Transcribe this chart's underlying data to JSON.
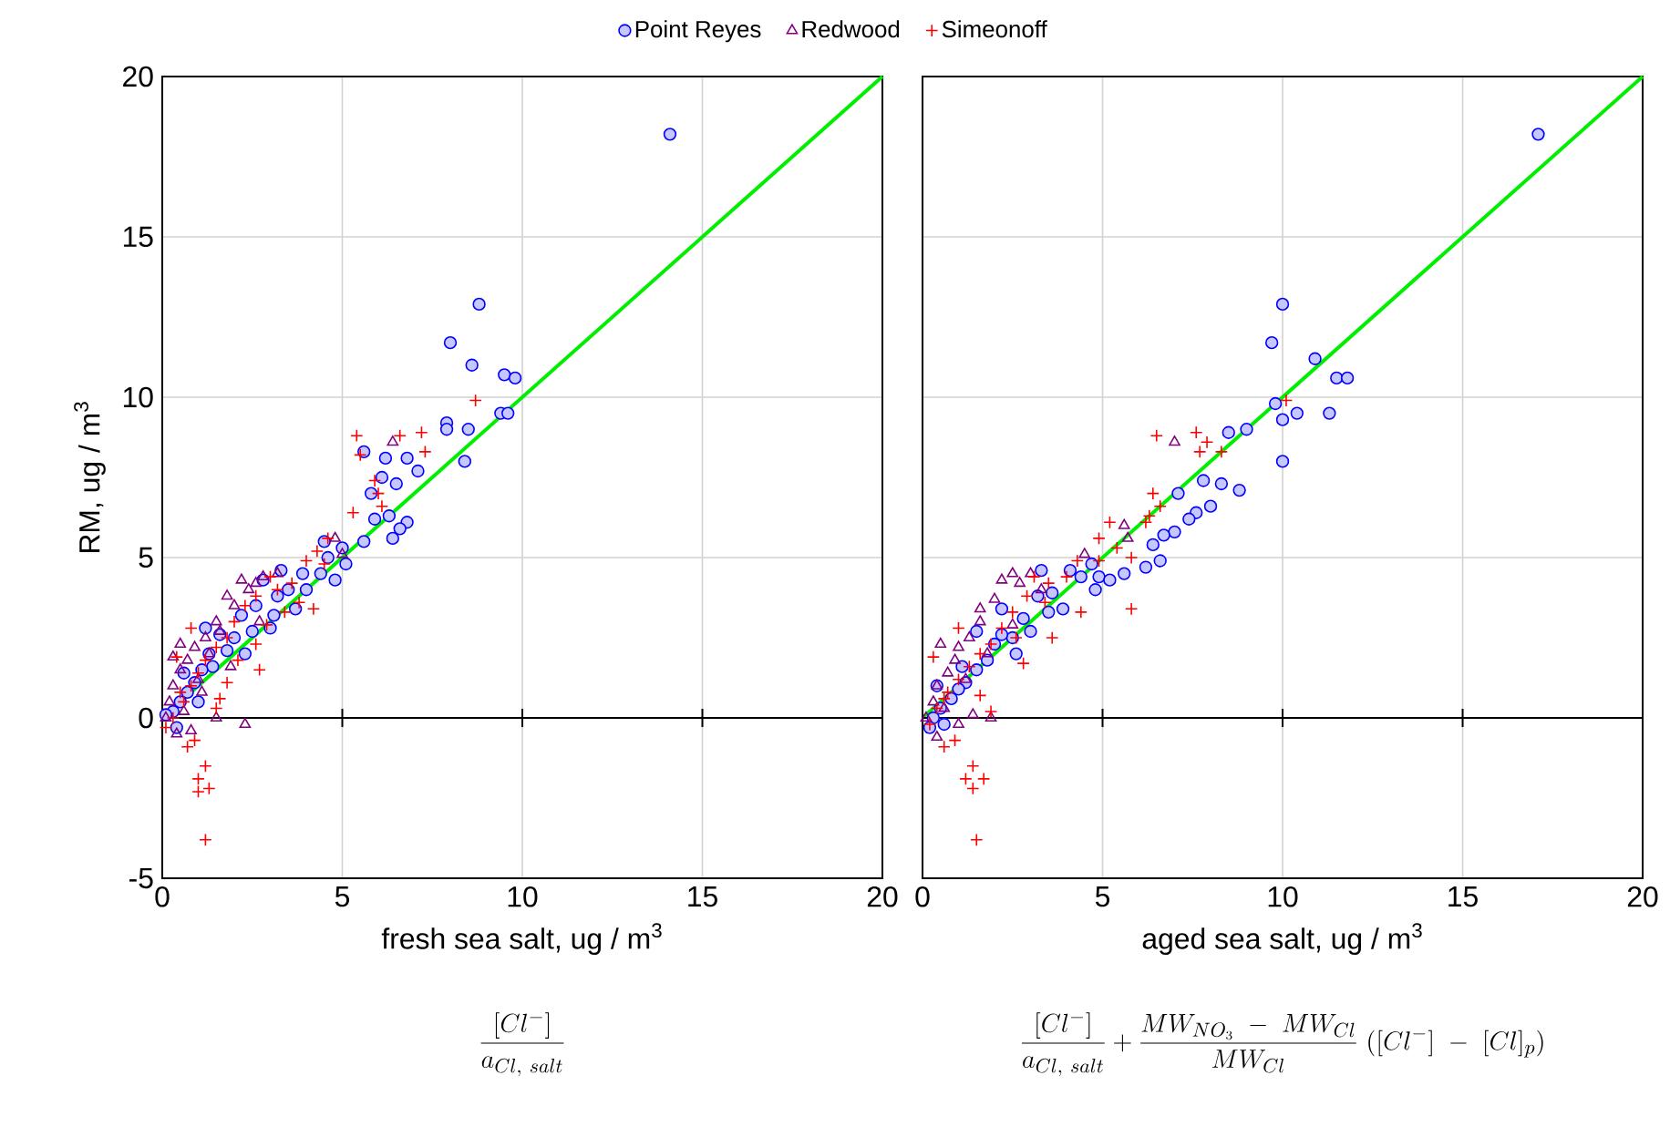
{
  "chart_data": [
    {
      "type": "scatter",
      "xlabel": "fresh sea salt, ug / m$^{3}$",
      "ylabel": "RM, ug / m$^{3}$",
      "xlim": [
        0,
        20
      ],
      "ylim": [
        -5,
        20
      ],
      "xticks": [
        0,
        5,
        10,
        15,
        20
      ],
      "yticks": [
        -5,
        0,
        5,
        10,
        15,
        20
      ],
      "grid": true,
      "legend": "top",
      "annotations": [
        "\\frac{[Cl^{-}]}{a_{Cl,\\ salt}}"
      ],
      "ref_lines": [
        {
          "axis": "y",
          "value": 0,
          "color": "#000000"
        }
      ],
      "series": [
        {
          "name": "Point Reyes",
          "color": "#0000ff",
          "marker": "circle",
          "x": [
            14.1,
            8.0,
            8.8,
            8.6,
            9.5,
            9.8,
            7.9,
            7.9,
            9.4,
            9.6,
            8.5,
            8.4,
            5.6,
            6.2,
            6.8,
            6.1,
            5.8,
            6.5,
            7.1,
            5.9,
            6.3,
            6.8,
            6.6,
            6.4,
            5.6,
            5.0,
            4.5,
            4.6,
            5.1,
            4.4,
            4.8,
            3.9,
            4.0,
            3.5,
            3.2,
            3.7,
            3.1,
            3.0,
            2.6,
            2.2,
            2.5,
            2.0,
            1.8,
            1.6,
            1.3,
            1.4,
            1.1,
            0.9,
            0.7,
            0.5,
            0.3,
            0.4,
            0.1,
            0.6,
            1.0,
            2.8,
            3.3,
            1.2,
            2.3
          ],
          "values": [
            18.2,
            11.7,
            12.9,
            11.0,
            10.7,
            10.6,
            9.2,
            9.0,
            9.5,
            9.5,
            9.0,
            8.0,
            8.3,
            8.1,
            8.1,
            7.5,
            7.0,
            7.3,
            7.7,
            6.2,
            6.3,
            6.1,
            5.9,
            5.6,
            5.5,
            5.3,
            5.5,
            5.0,
            4.8,
            4.5,
            4.3,
            4.5,
            4.0,
            4.0,
            3.8,
            3.4,
            3.2,
            2.8,
            3.5,
            3.2,
            2.7,
            2.5,
            2.1,
            2.6,
            2.0,
            1.6,
            1.5,
            1.1,
            0.8,
            0.5,
            0.2,
            -0.3,
            0.1,
            1.4,
            0.5,
            4.3,
            4.6,
            2.8,
            2.0
          ]
        },
        {
          "name": "Redwood",
          "color": "#800080",
          "marker": "triangle",
          "x": [
            6.4,
            4.8,
            5.0,
            2.0,
            2.4,
            2.6,
            2.2,
            1.8,
            1.5,
            1.2,
            0.9,
            0.7,
            0.5,
            0.3,
            0.2,
            0.1,
            0.4,
            0.6,
            1.0,
            1.5,
            2.3,
            1.3,
            1.6,
            2.8,
            3.2,
            2.7,
            0.8,
            1.1,
            0.3,
            0.5,
            1.9
          ],
          "values": [
            8.6,
            5.6,
            5.1,
            3.5,
            4.0,
            4.2,
            4.3,
            3.8,
            3.0,
            2.5,
            2.2,
            1.8,
            1.5,
            1.0,
            0.5,
            0.0,
            -0.5,
            0.2,
            1.2,
            0.0,
            -0.2,
            2.0,
            2.7,
            4.4,
            4.5,
            3.0,
            -0.4,
            0.8,
            1.9,
            2.3,
            1.6
          ]
        },
        {
          "name": "Simeonoff",
          "color": "#ff0000",
          "marker": "cross",
          "x": [
            8.7,
            6.6,
            7.2,
            7.3,
            5.4,
            5.5,
            5.9,
            6.0,
            6.1,
            5.3,
            4.6,
            4.0,
            4.3,
            4.5,
            3.6,
            3.2,
            3.0,
            3.4,
            2.6,
            2.3,
            2.0,
            1.8,
            1.5,
            1.2,
            1.0,
            0.8,
            0.6,
            0.3,
            0.1,
            0.5,
            0.8,
            0.9,
            1.2,
            1.0,
            1.3,
            1.0,
            1.2,
            0.7,
            1.5,
            2.7,
            1.8,
            2.6,
            4.2,
            3.8,
            2.1,
            0.4,
            1.6,
            2.9
          ],
          "values": [
            9.9,
            8.8,
            8.9,
            8.3,
            8.8,
            8.2,
            7.4,
            7.0,
            6.6,
            6.4,
            5.6,
            4.9,
            5.2,
            4.8,
            4.2,
            4.0,
            4.4,
            3.3,
            3.8,
            3.5,
            3.0,
            2.5,
            2.2,
            1.8,
            1.4,
            1.0,
            0.5,
            0.0,
            -0.3,
            0.8,
            2.8,
            -0.7,
            -1.5,
            -1.9,
            -2.2,
            -2.3,
            -3.8,
            -0.9,
            0.3,
            1.5,
            1.1,
            2.3,
            3.4,
            3.6,
            1.8,
            1.9,
            0.6,
            2.9
          ]
        },
        {
          "type": "line",
          "color": "#00ee00",
          "x": [
            0,
            20
          ],
          "values": [
            0,
            20
          ]
        }
      ]
    },
    {
      "type": "scatter",
      "xlabel": "aged sea salt, ug / m$^{3}$",
      "xlim": [
        0,
        20
      ],
      "ylim": [
        -5,
        20
      ],
      "xticks": [
        0,
        5,
        10,
        15,
        20
      ],
      "yticks": [
        -5,
        0,
        5,
        10,
        15,
        20
      ],
      "grid": true,
      "tick_labels": "x",
      "annotations": [
        "\\frac{[Cl^{-}]}{a_{Cl,\\ salt}}+\\frac{MW_{NO_3}\\ -\\ MW_{Cl}}{MW_{Cl}}\\ ([Cl^{-}]\\ -\\ [Cl]_p)"
      ],
      "ref_lines": [
        {
          "axis": "y",
          "value": 0,
          "color": "#000000"
        }
      ],
      "series": [
        {
          "color": "#0000ff",
          "marker": "circle",
          "x": [
            17.1,
            10.0,
            9.7,
            10.9,
            11.5,
            11.8,
            10.4,
            11.3,
            10.0,
            9.8,
            10.0,
            9.0,
            8.5,
            8.3,
            7.8,
            8.0,
            7.6,
            7.4,
            7.0,
            6.4,
            6.7,
            7.1,
            8.8,
            6.6,
            6.2,
            5.6,
            4.7,
            4.9,
            5.2,
            4.4,
            4.8,
            3.6,
            3.9,
            3.5,
            3.2,
            2.8,
            3.0,
            2.5,
            2.2,
            2.0,
            1.8,
            1.5,
            1.2,
            1.0,
            0.8,
            0.5,
            0.3,
            0.2,
            0.6,
            0.4,
            1.5,
            2.2,
            3.3,
            2.6,
            1.1,
            4.1
          ],
          "values": [
            18.2,
            12.9,
            11.7,
            11.2,
            10.6,
            10.6,
            9.5,
            9.5,
            9.3,
            9.8,
            8.0,
            9.0,
            8.9,
            7.3,
            7.4,
            6.6,
            6.4,
            6.2,
            5.8,
            5.4,
            5.7,
            7.0,
            7.1,
            4.9,
            4.7,
            4.5,
            4.8,
            4.4,
            4.3,
            4.4,
            4.0,
            3.9,
            3.4,
            3.3,
            3.8,
            3.1,
            2.7,
            2.5,
            2.6,
            2.3,
            1.8,
            1.5,
            1.1,
            0.9,
            0.6,
            0.3,
            0.0,
            -0.3,
            -0.2,
            1.0,
            2.7,
            3.4,
            4.6,
            2.0,
            1.6,
            4.6
          ]
        },
        {
          "color": "#800080",
          "marker": "triangle",
          "x": [
            7.0,
            5.6,
            5.7,
            4.5,
            3.0,
            2.5,
            2.0,
            1.6,
            1.3,
            1.0,
            0.9,
            0.7,
            0.4,
            0.3,
            0.1,
            0.4,
            1.4,
            1.9,
            0.6,
            1.2,
            2.2,
            2.7,
            3.3,
            1.8,
            0.5,
            1.0,
            2.5,
            1.6
          ],
          "values": [
            8.6,
            6.0,
            5.6,
            5.1,
            4.5,
            4.5,
            3.7,
            3.0,
            2.5,
            2.2,
            1.8,
            1.4,
            1.0,
            0.5,
            0.0,
            -0.6,
            0.1,
            0.0,
            0.3,
            1.2,
            4.3,
            4.2,
            4.0,
            2.0,
            2.3,
            -0.2,
            2.9,
            3.4
          ]
        },
        {
          "color": "#ff0000",
          "marker": "cross",
          "x": [
            10.1,
            6.5,
            7.6,
            7.9,
            8.3,
            7.7,
            6.4,
            6.6,
            6.3,
            6.2,
            5.2,
            4.9,
            5.4,
            5.8,
            4.9,
            4.3,
            4.0,
            3.5,
            3.1,
            2.9,
            2.5,
            2.2,
            1.9,
            1.6,
            1.3,
            1.0,
            0.7,
            0.4,
            0.2,
            0.6,
            1.0,
            0.9,
            1.4,
            1.2,
            1.7,
            1.4,
            1.5,
            0.6,
            1.9,
            5.8,
            3.6,
            4.4,
            3.4,
            2.8,
            0.3,
            1.6,
            2.6
          ],
          "values": [
            9.9,
            8.8,
            8.9,
            8.6,
            8.3,
            8.3,
            7.0,
            6.6,
            6.3,
            6.1,
            6.1,
            5.6,
            5.3,
            5.0,
            4.9,
            4.9,
            4.4,
            4.2,
            4.4,
            3.8,
            3.3,
            2.8,
            2.3,
            2.0,
            1.6,
            1.2,
            0.8,
            0.3,
            -0.2,
            0.6,
            2.8,
            -0.7,
            -1.5,
            -1.9,
            -1.9,
            -2.2,
            -3.8,
            -0.9,
            0.2,
            3.4,
            2.5,
            3.3,
            3.6,
            1.7,
            1.9,
            0.7,
            2.5
          ]
        },
        {
          "type": "line",
          "color": "#00ee00",
          "x": [
            0,
            20
          ],
          "values": [
            0,
            20
          ]
        }
      ]
    }
  ]
}
